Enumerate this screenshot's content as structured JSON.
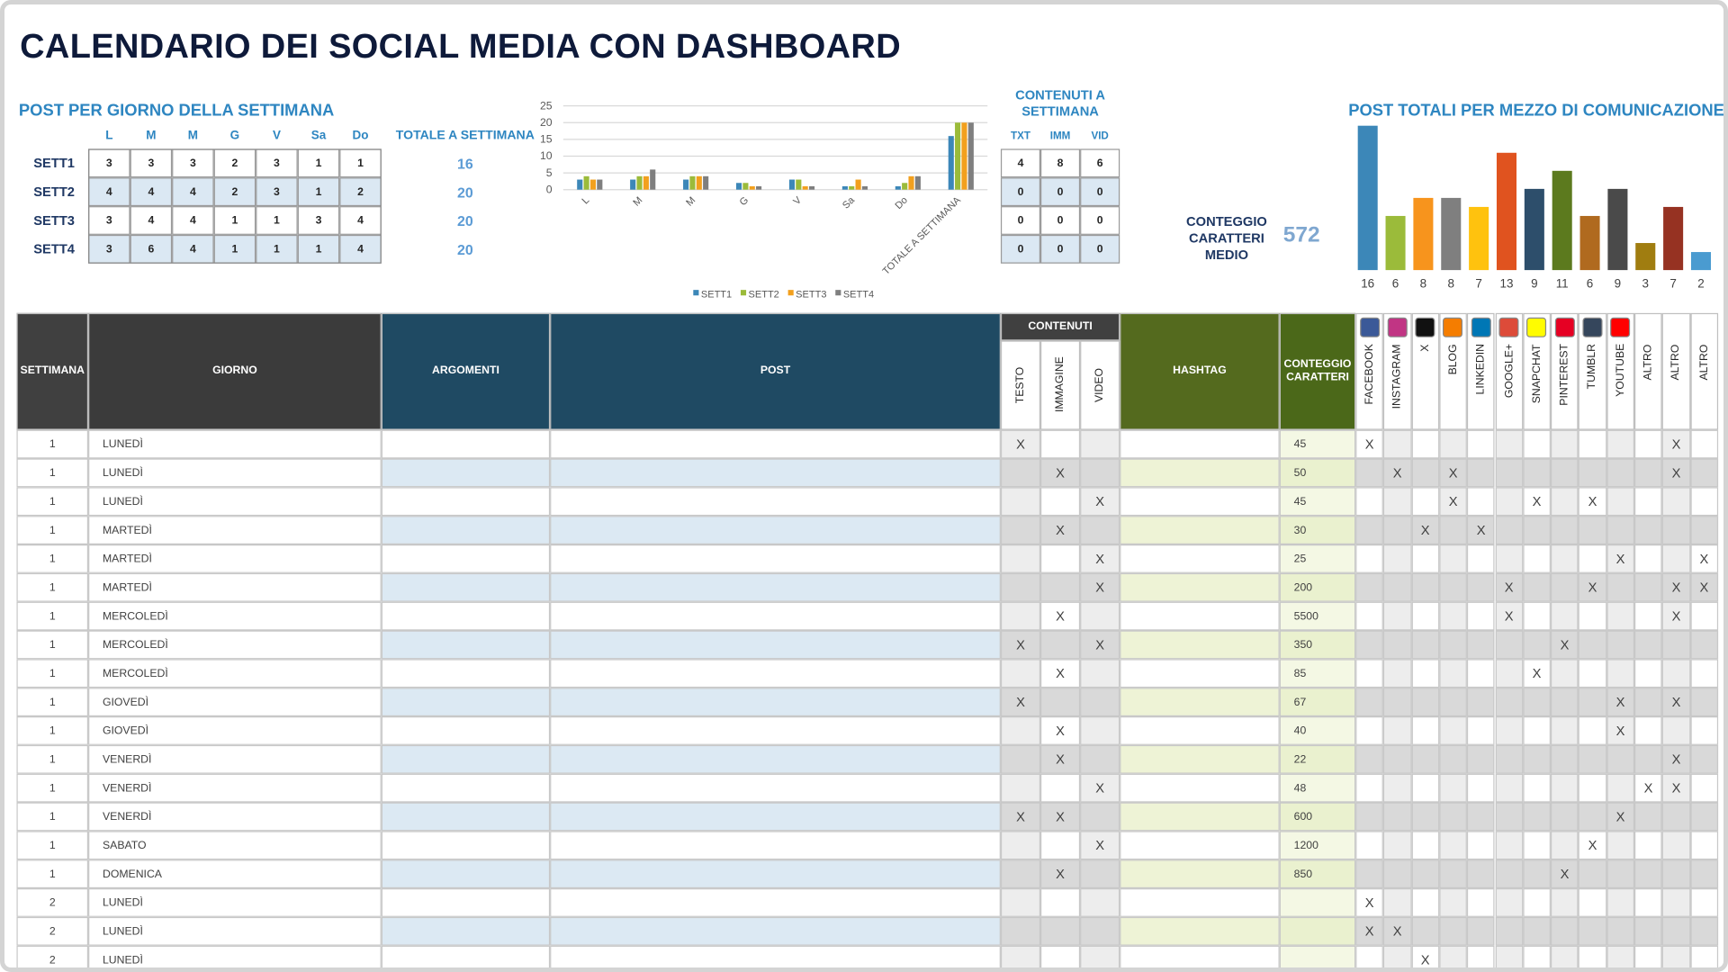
{
  "title": "CALENDARIO DEI SOCIAL MEDIA CON DASHBOARD",
  "day_table": {
    "title": "POST PER GIORNO DELLA SETTIMANA",
    "columns": [
      "L",
      "M",
      "M",
      "G",
      "V",
      "Sa",
      "Do"
    ],
    "rows": [
      {
        "label": "SETT1",
        "values": [
          3,
          3,
          3,
          2,
          3,
          1,
          1
        ]
      },
      {
        "label": "SETT2",
        "values": [
          4,
          4,
          4,
          2,
          3,
          1,
          2
        ]
      },
      {
        "label": "SETT3",
        "values": [
          3,
          4,
          4,
          1,
          1,
          3,
          4
        ]
      },
      {
        "label": "SETT4",
        "values": [
          3,
          6,
          4,
          1,
          1,
          1,
          4
        ]
      }
    ],
    "totals_header": "TOTALE A SETTIMANA",
    "totals": [
      16,
      20,
      20,
      20
    ]
  },
  "week_chart": {
    "type": "bar",
    "categories": [
      "L",
      "M",
      "M",
      "G",
      "V",
      "Sa",
      "Do",
      "TOTALE A SETTIMANA"
    ],
    "series": [
      {
        "name": "SETT1",
        "color": "#3c87b8",
        "values": [
          3,
          3,
          3,
          2,
          3,
          1,
          1,
          16
        ]
      },
      {
        "name": "SETT2",
        "color": "#9bbb3a",
        "values": [
          4,
          4,
          4,
          2,
          3,
          1,
          2,
          20
        ]
      },
      {
        "name": "SETT3",
        "color": "#f2a01e",
        "values": [
          3,
          4,
          4,
          1,
          1,
          3,
          4,
          20
        ]
      },
      {
        "name": "SETT4",
        "color": "#7f7f7f",
        "values": [
          3,
          6,
          4,
          1,
          1,
          1,
          4,
          20
        ]
      }
    ],
    "ylim": [
      0,
      25
    ],
    "yticks": [
      0,
      5,
      10,
      15,
      20,
      25
    ],
    "grid": true,
    "legend": "bottom"
  },
  "content_table": {
    "title": "CONTENUTI A SETTIMANA",
    "columns": [
      "TXT",
      "IMM",
      "VID"
    ],
    "rows": [
      [
        4,
        8,
        6
      ],
      [
        0,
        0,
        0
      ],
      [
        0,
        0,
        0
      ],
      [
        0,
        0,
        0
      ]
    ]
  },
  "avg_chars": {
    "label": "CONTEGGIO CARATTERI MEDIO",
    "value": 572
  },
  "media_chart": {
    "type": "bar",
    "title": "POST TOTALI PER MEZZO DI COMUNICAZIONE",
    "values": [
      16,
      6,
      8,
      8,
      7,
      13,
      9,
      11,
      6,
      9,
      3,
      7,
      2
    ],
    "colors": [
      "#3c87b8",
      "#9bbb3a",
      "#f7941d",
      "#7f7f7f",
      "#ffc20e",
      "#e0531f",
      "#2d4e6b",
      "#5c7a1e",
      "#b06a1f",
      "#4a4a4a",
      "#a07d10",
      "#963222",
      "#4a9bd0"
    ],
    "ylim": [
      0,
      16
    ]
  },
  "calendar": {
    "headers": {
      "week": "SETTIMANA",
      "day": "GIORNO",
      "topics": "ARGOMENTI",
      "post": "POST",
      "content": "CONTENUTI",
      "hashtag": "HASHTAG",
      "chars": "CONTEGGIO CARATTERI"
    },
    "content_columns": [
      "TESTO",
      "IMMAGINE",
      "VIDEO"
    ],
    "media_columns": [
      "FACEBOOK",
      "INSTAGRAM",
      "X",
      "BLOG",
      "LINKEDIN",
      "GOOGLE+",
      "SNAPCHAT",
      "PINTEREST",
      "TUMBLR",
      "YOUTUBE",
      "ALTRO",
      "ALTRO",
      "ALTRO"
    ],
    "rows": [
      {
        "week": 1,
        "day": "LUNEDÌ",
        "chars": 45,
        "content": [
          "X",
          null,
          null
        ],
        "media": [
          "X",
          null,
          null,
          null,
          null,
          null,
          null,
          null,
          null,
          null,
          null,
          "X",
          null
        ]
      },
      {
        "week": 1,
        "day": "LUNEDÌ",
        "chars": 50,
        "content": [
          null,
          "X",
          null
        ],
        "media": [
          null,
          "X",
          null,
          "X",
          null,
          null,
          null,
          null,
          null,
          null,
          null,
          "X",
          null
        ]
      },
      {
        "week": 1,
        "day": "LUNEDÌ",
        "chars": 45,
        "content": [
          null,
          null,
          "X"
        ],
        "media": [
          null,
          null,
          null,
          "X",
          null,
          null,
          "X",
          null,
          "X",
          null,
          null,
          null,
          null
        ]
      },
      {
        "week": 1,
        "day": "MARTEDÌ",
        "chars": 30,
        "content": [
          null,
          "X",
          null
        ],
        "media": [
          null,
          null,
          "X",
          null,
          "X",
          null,
          null,
          null,
          null,
          null,
          null,
          null,
          null
        ]
      },
      {
        "week": 1,
        "day": "MARTEDÌ",
        "chars": 25,
        "content": [
          null,
          null,
          "X"
        ],
        "media": [
          null,
          null,
          null,
          null,
          null,
          null,
          null,
          null,
          null,
          "X",
          null,
          null,
          "X"
        ]
      },
      {
        "week": 1,
        "day": "MARTEDÌ",
        "chars": 200,
        "content": [
          null,
          null,
          "X"
        ],
        "media": [
          null,
          null,
          null,
          null,
          null,
          "X",
          null,
          null,
          "X",
          null,
          null,
          "X",
          "X"
        ]
      },
      {
        "week": 1,
        "day": "MERCOLEDÌ",
        "chars": 5500,
        "content": [
          null,
          "X",
          null
        ],
        "media": [
          null,
          null,
          null,
          null,
          null,
          "X",
          null,
          null,
          null,
          null,
          null,
          "X",
          null
        ]
      },
      {
        "week": 1,
        "day": "MERCOLEDÌ",
        "chars": 350,
        "content": [
          "X",
          null,
          "X"
        ],
        "media": [
          null,
          null,
          null,
          null,
          null,
          null,
          null,
          "X",
          null,
          null,
          null,
          null,
          null
        ]
      },
      {
        "week": 1,
        "day": "MERCOLEDÌ",
        "chars": 85,
        "content": [
          null,
          "X",
          null
        ],
        "media": [
          null,
          null,
          null,
          null,
          null,
          null,
          "X",
          null,
          null,
          null,
          null,
          null,
          null
        ]
      },
      {
        "week": 1,
        "day": "GIOVEDÌ",
        "chars": 67,
        "content": [
          "X",
          null,
          null
        ],
        "media": [
          null,
          null,
          null,
          null,
          null,
          null,
          null,
          null,
          null,
          "X",
          null,
          "X",
          null
        ]
      },
      {
        "week": 1,
        "day": "GIOVEDÌ",
        "chars": 40,
        "content": [
          null,
          "X",
          null
        ],
        "media": [
          null,
          null,
          null,
          null,
          null,
          null,
          null,
          null,
          null,
          "X",
          null,
          null,
          null
        ]
      },
      {
        "week": 1,
        "day": "VENERDÌ",
        "chars": 22,
        "content": [
          null,
          "X",
          null
        ],
        "media": [
          null,
          null,
          null,
          null,
          null,
          null,
          null,
          null,
          null,
          null,
          null,
          "X",
          null
        ]
      },
      {
        "week": 1,
        "day": "VENERDÌ",
        "chars": 48,
        "content": [
          null,
          null,
          "X"
        ],
        "media": [
          null,
          null,
          null,
          null,
          null,
          null,
          null,
          null,
          null,
          null,
          "X",
          "X",
          null
        ]
      },
      {
        "week": 1,
        "day": "VENERDÌ",
        "chars": 600,
        "content": [
          "X",
          "X",
          null
        ],
        "media": [
          null,
          null,
          null,
          null,
          null,
          null,
          null,
          null,
          null,
          "X",
          null,
          null,
          null
        ]
      },
      {
        "week": 1,
        "day": "SABATO",
        "chars": 1200,
        "content": [
          null,
          null,
          "X"
        ],
        "media": [
          null,
          null,
          null,
          null,
          null,
          null,
          null,
          null,
          "X",
          null,
          null,
          null,
          null
        ]
      },
      {
        "week": 1,
        "day": "DOMENICA",
        "chars": 850,
        "content": [
          null,
          "X",
          null
        ],
        "media": [
          null,
          null,
          null,
          null,
          null,
          null,
          null,
          "X",
          null,
          null,
          null,
          null,
          null
        ]
      },
      {
        "week": 2,
        "day": "LUNEDÌ",
        "chars": null,
        "content": [
          null,
          null,
          null
        ],
        "media": [
          "X",
          null,
          null,
          null,
          null,
          null,
          null,
          null,
          null,
          null,
          null,
          null,
          null
        ]
      },
      {
        "week": 2,
        "day": "LUNEDÌ",
        "chars": null,
        "content": [
          null,
          null,
          null
        ],
        "media": [
          "X",
          "X",
          null,
          null,
          null,
          null,
          null,
          null,
          null,
          null,
          null,
          null,
          null
        ]
      },
      {
        "week": 2,
        "day": "LUNEDÌ",
        "chars": null,
        "content": [
          null,
          null,
          null
        ],
        "media": [
          null,
          null,
          "X",
          null,
          null,
          null,
          null,
          null,
          null,
          null,
          null,
          null,
          null
        ]
      }
    ]
  }
}
